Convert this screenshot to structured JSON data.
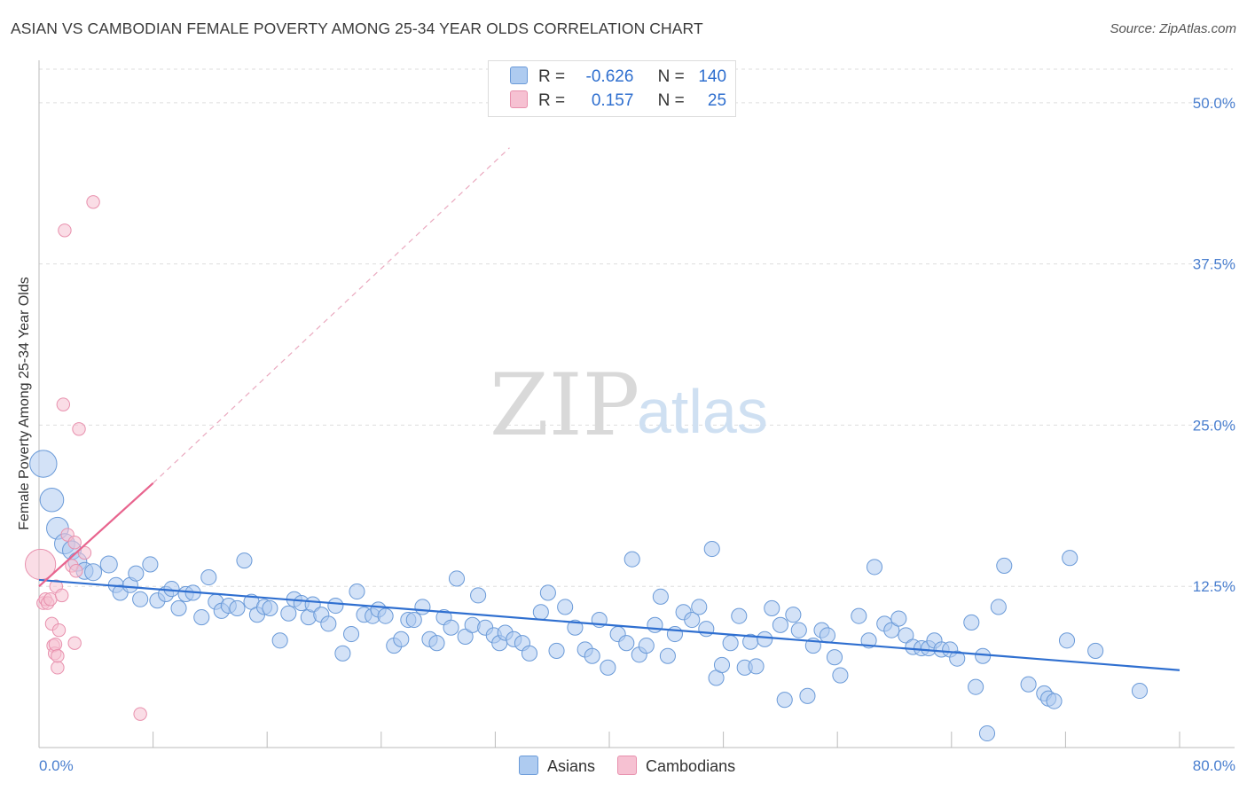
{
  "title": "ASIAN VS CAMBODIAN FEMALE POVERTY AMONG 25-34 YEAR OLDS CORRELATION CHART",
  "source": "Source: ZipAtlas.com",
  "watermark": {
    "zip": "ZIP",
    "atlas": "atlas"
  },
  "legend": {
    "rows": [
      {
        "r_label": "R =",
        "r_value": "-0.626",
        "n_label": "N =",
        "n_value": "140"
      },
      {
        "r_label": "R =",
        "r_value": "0.157",
        "n_label": "N =",
        "n_value": "25"
      }
    ]
  },
  "bottom_legend": {
    "asians": "Asians",
    "cambodians": "Cambodians"
  },
  "colors": {
    "asian_fill": "#aecbf0",
    "asian_stroke": "#6a9ad8",
    "asian_line": "#2f6fd0",
    "camb_fill": "#f6c1d2",
    "camb_stroke": "#e890ad",
    "camb_line": "#e8648e",
    "axis_text": "#4a7fcf",
    "grid": "#dddddd"
  },
  "chart_data": {
    "type": "scatter",
    "title": "ASIAN VS CAMBODIAN FEMALE POVERTY AMONG 25-34 YEAR OLDS CORRELATION CHART",
    "xlabel": "",
    "ylabel": "Female Poverty Among 25-34 Year Olds",
    "xlim": [
      0,
      80
    ],
    "ylim": [
      0,
      50
    ],
    "y_ticks": [
      "50.0%",
      "37.5%",
      "25.0%",
      "12.5%"
    ],
    "y_tick_values": [
      50,
      37.5,
      25,
      12.5
    ],
    "x_tick_labels": [
      "0.0%",
      "80.0%"
    ],
    "x_tick_values": [
      0,
      80
    ],
    "grid": true,
    "legend_position": "top-center",
    "series": [
      {
        "name": "Asians",
        "R": -0.626,
        "N": 140,
        "trend": {
          "x0": 0,
          "y0": 13.0,
          "x1": 80,
          "y1": 6.0
        },
        "points": [
          [
            0.3,
            22,
            1.6
          ],
          [
            0.9,
            19.2,
            1.4
          ],
          [
            1.3,
            17,
            1.3
          ],
          [
            1.8,
            15.8,
            1.2
          ],
          [
            2.3,
            15.3,
            1.1
          ],
          [
            2.7,
            14.4,
            1.1
          ],
          [
            3.2,
            13.7,
            1.0
          ],
          [
            3.8,
            13.6,
            1.0
          ],
          [
            4.9,
            14.2,
            1.0
          ],
          [
            5.4,
            12.6,
            0.9
          ],
          [
            5.7,
            12,
            0.9
          ],
          [
            6.4,
            12.6,
            0.9
          ],
          [
            6.8,
            13.5,
            0.9
          ],
          [
            7.1,
            11.5,
            0.9
          ],
          [
            7.8,
            14.2,
            0.9
          ],
          [
            8.3,
            11.4,
            0.9
          ],
          [
            8.9,
            11.9,
            0.9
          ],
          [
            9.3,
            12.3,
            0.9
          ],
          [
            9.8,
            10.8,
            0.9
          ],
          [
            10.3,
            11.9,
            0.9
          ],
          [
            10.8,
            12,
            0.9
          ],
          [
            11.4,
            10.1,
            0.9
          ],
          [
            11.9,
            13.2,
            0.9
          ],
          [
            12.4,
            11.3,
            0.9
          ],
          [
            12.8,
            10.6,
            0.9
          ],
          [
            13.3,
            11,
            0.9
          ],
          [
            13.9,
            10.8,
            0.9
          ],
          [
            14.4,
            14.5,
            0.9
          ],
          [
            14.9,
            11.3,
            0.9
          ],
          [
            15.3,
            10.3,
            0.9
          ],
          [
            15.8,
            10.9,
            0.9
          ],
          [
            16.2,
            10.8,
            0.9
          ],
          [
            16.9,
            8.3,
            0.9
          ],
          [
            17.5,
            10.4,
            0.9
          ],
          [
            17.9,
            11.5,
            0.9
          ],
          [
            18.4,
            11.2,
            0.9
          ],
          [
            18.9,
            10.1,
            0.9
          ],
          [
            19.2,
            11.1,
            0.9
          ],
          [
            19.8,
            10.3,
            0.9
          ],
          [
            20.3,
            9.6,
            0.9
          ],
          [
            20.8,
            11,
            0.9
          ],
          [
            21.3,
            7.3,
            0.9
          ],
          [
            21.9,
            8.8,
            0.9
          ],
          [
            22.3,
            12.1,
            0.9
          ],
          [
            22.8,
            10.3,
            0.9
          ],
          [
            23.4,
            10.2,
            0.9
          ],
          [
            23.8,
            10.7,
            0.9
          ],
          [
            24.3,
            10.2,
            0.9
          ],
          [
            24.9,
            7.9,
            0.9
          ],
          [
            25.4,
            8.4,
            0.9
          ],
          [
            25.9,
            9.9,
            0.9
          ],
          [
            26.3,
            9.9,
            0.9
          ],
          [
            26.9,
            10.9,
            0.9
          ],
          [
            27.4,
            8.4,
            0.9
          ],
          [
            27.9,
            8.1,
            0.9
          ],
          [
            28.4,
            10.1,
            0.9
          ],
          [
            28.9,
            9.3,
            0.9
          ],
          [
            29.3,
            13.1,
            0.9
          ],
          [
            29.9,
            8.6,
            0.9
          ],
          [
            30.4,
            9.5,
            0.9
          ],
          [
            30.8,
            11.8,
            0.9
          ],
          [
            31.3,
            9.3,
            0.9
          ],
          [
            31.9,
            8.7,
            0.9
          ],
          [
            32.3,
            8.1,
            0.9
          ],
          [
            32.7,
            8.9,
            0.9
          ],
          [
            33.3,
            8.4,
            0.9
          ],
          [
            33.9,
            8.1,
            0.9
          ],
          [
            34.4,
            7.3,
            0.9
          ],
          [
            35.2,
            10.5,
            0.9
          ],
          [
            35.7,
            12,
            0.9
          ],
          [
            36.3,
            7.5,
            0.9
          ],
          [
            36.9,
            10.9,
            0.9
          ],
          [
            37.6,
            9.3,
            0.9
          ],
          [
            38.3,
            7.6,
            0.9
          ],
          [
            38.8,
            7.1,
            0.9
          ],
          [
            39.3,
            9.9,
            0.9
          ],
          [
            39.9,
            6.2,
            0.9
          ],
          [
            40.6,
            8.8,
            0.9
          ],
          [
            41.2,
            8.1,
            0.9
          ],
          [
            41.6,
            14.6,
            0.9
          ],
          [
            42.1,
            7.2,
            0.9
          ],
          [
            42.6,
            7.9,
            0.9
          ],
          [
            43.2,
            9.5,
            0.9
          ],
          [
            43.6,
            11.7,
            0.9
          ],
          [
            44.1,
            7.1,
            0.9
          ],
          [
            44.6,
            8.8,
            0.9
          ],
          [
            45.2,
            10.5,
            0.9
          ],
          [
            45.8,
            9.9,
            0.9
          ],
          [
            46.3,
            10.9,
            0.9
          ],
          [
            46.8,
            9.2,
            0.9
          ],
          [
            47.2,
            15.4,
            0.9
          ],
          [
            47.5,
            5.4,
            0.9
          ],
          [
            47.9,
            6.4,
            0.9
          ],
          [
            48.5,
            8.1,
            0.9
          ],
          [
            49.1,
            10.2,
            0.9
          ],
          [
            49.5,
            6.2,
            0.9
          ],
          [
            49.9,
            8.2,
            0.9
          ],
          [
            50.3,
            6.3,
            0.9
          ],
          [
            50.9,
            8.4,
            0.9
          ],
          [
            51.4,
            10.8,
            0.9
          ],
          [
            52.0,
            9.5,
            0.9
          ],
          [
            52.3,
            3.7,
            0.9
          ],
          [
            52.9,
            10.3,
            0.9
          ],
          [
            53.3,
            9.1,
            0.9
          ],
          [
            53.9,
            4.0,
            0.9
          ],
          [
            54.3,
            7.9,
            0.9
          ],
          [
            54.9,
            9.1,
            0.9
          ],
          [
            55.3,
            8.7,
            0.9
          ],
          [
            55.8,
            7.0,
            0.9
          ],
          [
            56.2,
            5.6,
            0.9
          ],
          [
            57.5,
            10.2,
            0.9
          ],
          [
            58.2,
            8.3,
            0.9
          ],
          [
            58.6,
            14.0,
            0.9
          ],
          [
            59.3,
            9.6,
            0.9
          ],
          [
            59.8,
            9.1,
            0.9
          ],
          [
            60.3,
            10.0,
            0.9
          ],
          [
            60.8,
            8.7,
            0.9
          ],
          [
            61.3,
            7.8,
            0.9
          ],
          [
            61.9,
            7.7,
            0.9
          ],
          [
            62.4,
            7.7,
            0.9
          ],
          [
            62.8,
            8.3,
            0.9
          ],
          [
            63.3,
            7.6,
            0.9
          ],
          [
            63.9,
            7.6,
            0.9
          ],
          [
            64.4,
            6.9,
            0.9
          ],
          [
            65.4,
            9.7,
            0.9
          ],
          [
            65.7,
            4.7,
            0.9
          ],
          [
            66.2,
            7.1,
            0.9
          ],
          [
            66.5,
            1.1,
            0.9
          ],
          [
            67.3,
            10.9,
            0.9
          ],
          [
            67.7,
            14.1,
            0.9
          ],
          [
            69.4,
            4.9,
            0.9
          ],
          [
            70.5,
            4.2,
            0.9
          ],
          [
            70.8,
            3.8,
            0.9
          ],
          [
            71.2,
            3.6,
            0.9
          ],
          [
            72.1,
            8.3,
            0.9
          ],
          [
            72.3,
            14.7,
            0.9
          ],
          [
            74.1,
            7.5,
            0.9
          ],
          [
            77.2,
            4.4,
            0.9
          ]
        ]
      },
      {
        "name": "Cambodians",
        "R": 0.157,
        "N": 25,
        "trend": {
          "x0": 0,
          "y0": 12.5,
          "x1": 8,
          "y1": 20.5,
          "dash_to_x": 33,
          "dash_to_y": 46.5
        },
        "points": [
          [
            0.1,
            14.2,
            1.9
          ],
          [
            0.3,
            11.2,
            0.8
          ],
          [
            0.45,
            11.5,
            0.8
          ],
          [
            0.6,
            11.2,
            0.8
          ],
          [
            0.8,
            11.5,
            0.8
          ],
          [
            0.9,
            9.6,
            0.8
          ],
          [
            1.0,
            7.9,
            0.8
          ],
          [
            1.1,
            7.3,
            0.8
          ],
          [
            1.15,
            8.0,
            0.8
          ],
          [
            1.2,
            12.5,
            0.8
          ],
          [
            1.3,
            6.2,
            0.8
          ],
          [
            1.3,
            7.1,
            0.8
          ],
          [
            1.4,
            9.1,
            0.8
          ],
          [
            1.6,
            11.8,
            0.8
          ],
          [
            1.7,
            26.6,
            0.8
          ],
          [
            1.8,
            40.1,
            0.8
          ],
          [
            2.0,
            16.5,
            0.8
          ],
          [
            2.3,
            14.1,
            0.8
          ],
          [
            2.5,
            15.9,
            0.8
          ],
          [
            2.5,
            8.1,
            0.8
          ],
          [
            2.6,
            13.7,
            0.8
          ],
          [
            2.8,
            24.7,
            0.8
          ],
          [
            3.2,
            15.1,
            0.8
          ],
          [
            3.8,
            42.3,
            0.8
          ],
          [
            7.1,
            2.6,
            0.8
          ]
        ]
      }
    ]
  }
}
